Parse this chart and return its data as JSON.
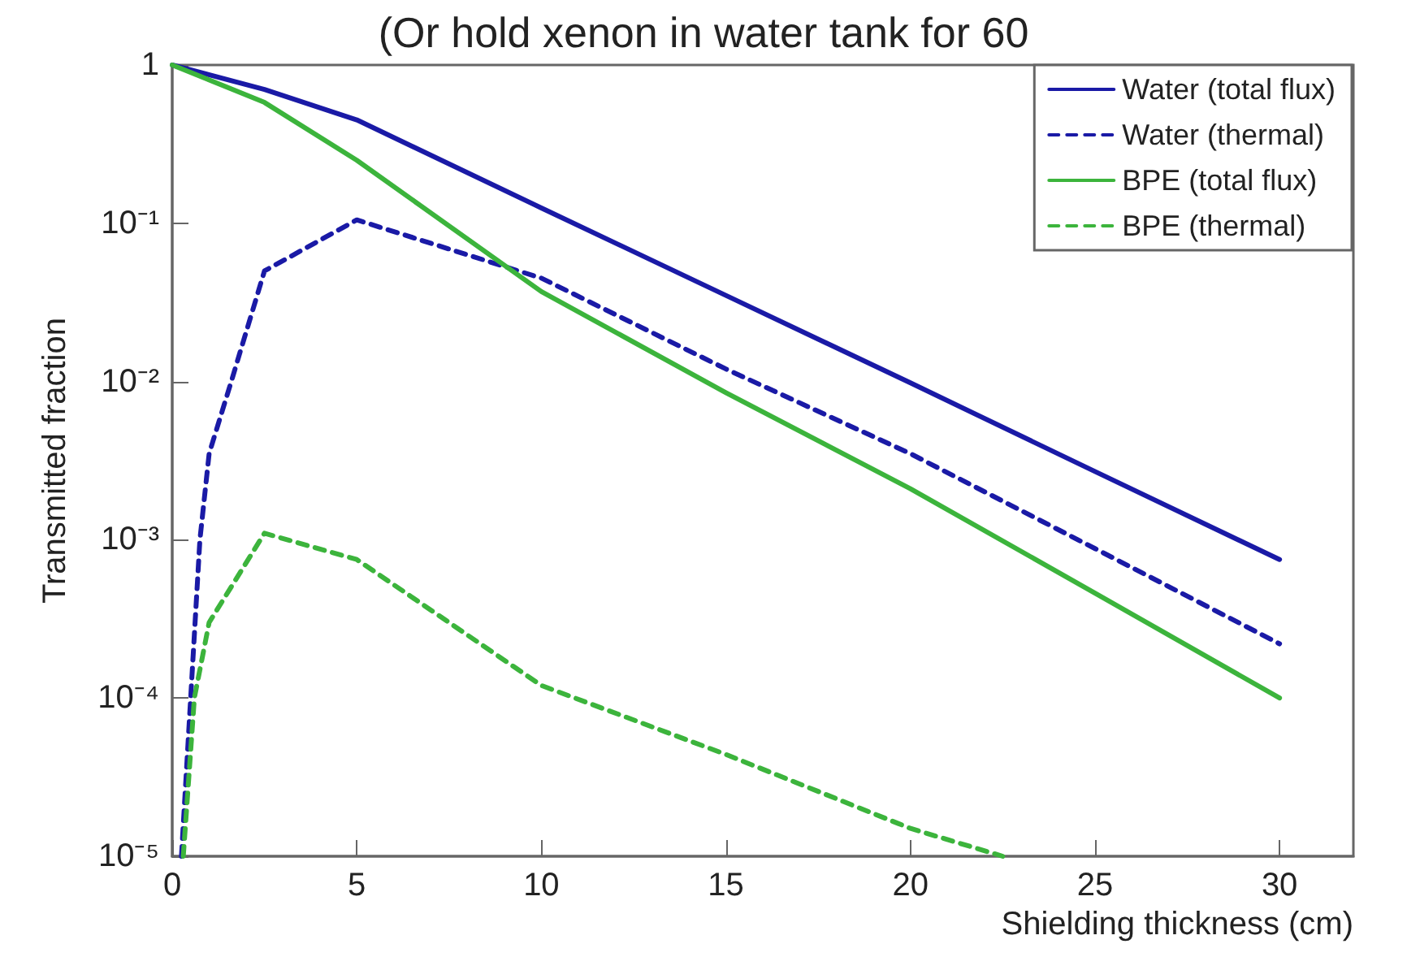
{
  "chart_data": {
    "type": "line",
    "title": "(Or hold xenon in water tank for 60",
    "xlabel": "Shielding thickness (cm)",
    "ylabel": "Transmitted fraction",
    "log": "y",
    "grid": false,
    "legend": "top right",
    "marker": "none",
    "xlim": [
      0,
      32
    ],
    "xticks": [
      0,
      5,
      10,
      15,
      20,
      25,
      30
    ],
    "ylim": [
      1e-05,
      1
    ],
    "yticks": [
      {
        "value": 1e-05,
        "label": "10⁻⁵"
      },
      {
        "value": 0.0001,
        "label": "10⁻⁴"
      },
      {
        "value": 0.001,
        "label": "10⁻³"
      },
      {
        "value": 0.01,
        "label": "10⁻²"
      },
      {
        "value": 0.1,
        "label": "10⁻¹"
      },
      {
        "value": 1,
        "label": "1"
      }
    ],
    "series": [
      {
        "name": "Water (total flux)",
        "color": "#1a1aa6",
        "line_style": "solid",
        "x": [
          0,
          2.5,
          5,
          10,
          15,
          20,
          25,
          30
        ],
        "values": [
          1,
          0.7,
          0.45,
          0.125,
          0.035,
          0.0098,
          0.0027,
          0.00075
        ]
      },
      {
        "name": "Water (thermal)",
        "color": "#1a1aa6",
        "line_style": "dashed",
        "x": [
          0.25,
          0.5,
          0.75,
          1,
          1.6,
          2.5,
          5,
          10,
          15,
          20,
          25,
          30
        ],
        "values": [
          1e-05,
          0.0001,
          0.001,
          0.0035,
          0.01,
          0.05,
          0.105,
          0.045,
          0.012,
          0.0035,
          0.00088,
          0.00022
        ]
      },
      {
        "name": "BPE (total flux)",
        "color": "#3cb43c",
        "line_style": "solid",
        "x": [
          0,
          2.5,
          5,
          10,
          15,
          20,
          25,
          30
        ],
        "values": [
          1,
          0.58,
          0.25,
          0.037,
          0.0085,
          0.0021,
          0.00046,
          0.0001
        ]
      },
      {
        "name": "BPE (thermal)",
        "color": "#3cb43c",
        "line_style": "dashed",
        "x": [
          0.3,
          0.6,
          1,
          2.5,
          5,
          10,
          15,
          20,
          22.5
        ],
        "values": [
          1e-05,
          0.0001,
          0.0003,
          0.0011,
          0.00075,
          0.00012,
          4.4e-05,
          1.5e-05,
          1e-05
        ]
      }
    ]
  }
}
